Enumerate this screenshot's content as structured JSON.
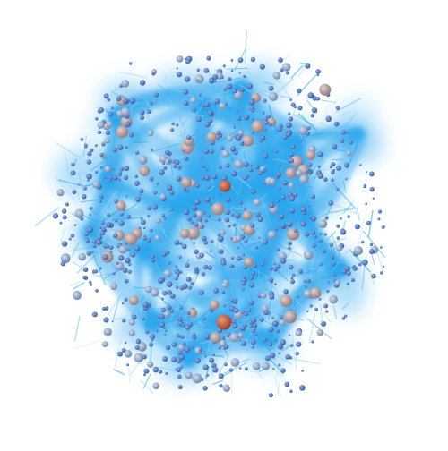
{
  "scene": {
    "background": "#ffffff",
    "filament_color": "#2aa6ee",
    "filament_light": "#8fd3f8",
    "halo_colors": {
      "small": "#3f6fbf",
      "medium": "#7f9ccc",
      "large": "#b39a9c",
      "massive": "#c2573c"
    }
  }
}
